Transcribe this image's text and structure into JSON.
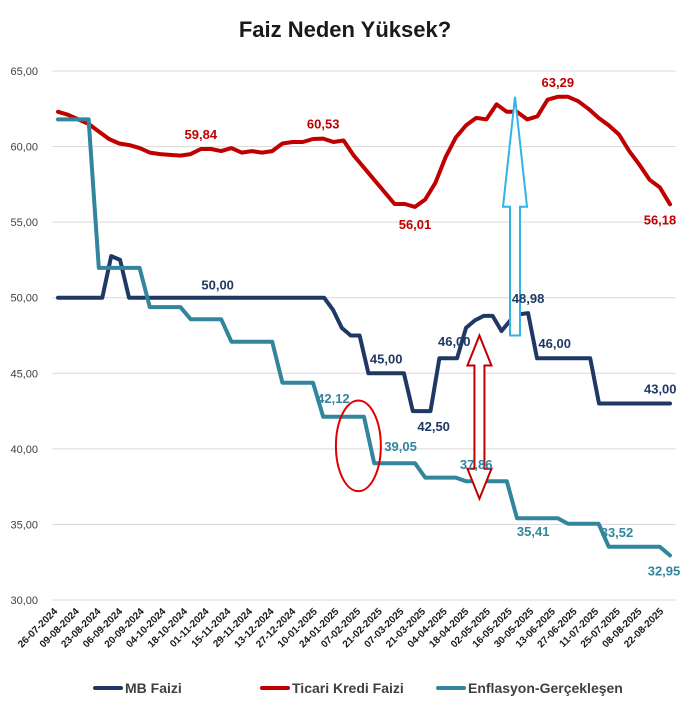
{
  "chart_data": {
    "type": "line",
    "title": "Faiz Neden Yüksek?",
    "ylim": [
      30,
      65
    ],
    "yticks": [
      "30,00",
      "35,00",
      "40,00",
      "45,00",
      "50,00",
      "55,00",
      "60,00",
      "65,00"
    ],
    "x_tick_labels": [
      "26-07-2024",
      "09-08-2024",
      "23-08-2024",
      "06-09-2024",
      "20-09-2024",
      "04-10-2024",
      "18-10-2024",
      "01-11-2024",
      "15-11-2024",
      "29-11-2024",
      "13-12-2024",
      "27-12-2024",
      "10-01-2025",
      "24-01-2025",
      "07-02-2025",
      "21-02-2025",
      "07-03-2025",
      "21-03-2025",
      "04-04-2025",
      "18-04-2025",
      "02-05-2025",
      "16-05-2025",
      "30-05-2025",
      "13-06-2025",
      "27-06-2025",
      "11-07-2025",
      "25-07-2025",
      "08-08-2025",
      "22-08-2025"
    ],
    "legend": [
      "MB Faizi",
      "Ticari Kredi Faizi",
      "Enflasyon-Gerçekleşen"
    ],
    "legend_position": "bottom",
    "colors": {
      "mb": "#1f3864",
      "ticari": "#c00000",
      "enflasyon": "#31859c",
      "circle": "#e00000",
      "red_arrow": "#c00000",
      "blue_arrow": "#31b4e6"
    },
    "series": [
      {
        "name": "MB Faizi",
        "values": [
          50,
          50,
          50,
          50,
          50,
          50,
          52.75,
          52.5,
          50,
          50,
          50,
          50,
          50,
          50,
          50,
          50,
          50,
          50,
          50,
          50,
          50,
          50,
          50,
          50,
          50,
          50,
          50,
          50,
          50,
          50,
          50,
          49.2,
          48,
          47.5,
          47.5,
          45,
          45,
          45,
          45,
          45,
          42.5,
          42.5,
          42.5,
          46,
          46,
          46,
          48,
          48.5,
          48.8,
          48.8,
          47.8,
          48.5,
          48.9,
          48.98,
          46,
          46,
          46,
          46,
          46,
          46,
          46,
          43,
          43,
          43,
          43,
          43,
          43,
          43,
          43,
          43
        ],
        "labels": [
          {
            "i": 18,
            "text": "50,00"
          },
          {
            "i": 37,
            "text": "45,00"
          },
          {
            "i": 41,
            "text": "42,50"
          },
          {
            "i": 44,
            "text": "46,00"
          },
          {
            "i": 53,
            "text": "48,98"
          },
          {
            "i": 56,
            "text": "46,00"
          },
          {
            "i": 67,
            "text": "43,00"
          }
        ]
      },
      {
        "name": "Ticari Kredi Faizi",
        "values": [
          62.3,
          62.1,
          61.8,
          61.5,
          61,
          60.5,
          60.2,
          60.1,
          59.9,
          59.6,
          59.5,
          59.45,
          59.4,
          59.5,
          59.84,
          59.84,
          59.7,
          59.9,
          59.6,
          59.7,
          59.6,
          59.7,
          60.2,
          60.3,
          60.3,
          60.5,
          60.53,
          60.3,
          60.4,
          59.4,
          58.6,
          57.8,
          57,
          56.2,
          56.2,
          56.01,
          56.5,
          57.6,
          59.3,
          60.6,
          61.4,
          61.9,
          61.8,
          62.8,
          62.3,
          62.3,
          61.8,
          62,
          63.1,
          63.29,
          63.29,
          63,
          62.5,
          61.9,
          61.4,
          60.8,
          59.7,
          58.8,
          57.8,
          57.3,
          56.18
        ],
        "labels": [
          {
            "i": 14,
            "text": "59,84"
          },
          {
            "i": 26,
            "text": "60,53"
          },
          {
            "i": 35,
            "text": "56,01"
          },
          {
            "i": 49,
            "text": "63,29"
          },
          {
            "i": 60,
            "text": "56,18"
          }
        ]
      },
      {
        "name": "Enflasyon-Gerçekleşen",
        "values": [
          61.8,
          61.8,
          61.8,
          61.8,
          51.97,
          51.97,
          51.97,
          51.97,
          51.97,
          49.38,
          49.38,
          49.38,
          49.38,
          48.58,
          48.58,
          48.58,
          48.58,
          47.09,
          47.09,
          47.09,
          47.09,
          47.09,
          44.38,
          44.38,
          44.38,
          44.38,
          42.12,
          42.12,
          42.12,
          42.12,
          42.12,
          39.05,
          39.05,
          39.05,
          39.05,
          39.05,
          38.1,
          38.1,
          38.1,
          38.1,
          37.86,
          37.86,
          37.86,
          37.86,
          37.86,
          35.41,
          35.41,
          35.41,
          35.41,
          35.41,
          35.05,
          35.05,
          35.05,
          35.05,
          33.52,
          33.52,
          33.52,
          33.52,
          33.52,
          33.52,
          32.95
        ],
        "labels": [
          {
            "i": 27,
            "text": "42,12"
          },
          {
            "i": 33,
            "text": "39,05"
          },
          {
            "i": 41,
            "text": "37,86"
          },
          {
            "i": 46,
            "text": "35,41"
          },
          {
            "i": 55,
            "text": "33,52"
          },
          {
            "i": 60,
            "text": "32,95"
          }
        ]
      }
    ],
    "annotations": {
      "circle": {
        "x_frac": [
          0.455,
          0.527
        ],
        "y_range": [
          37.2,
          43.2
        ]
      },
      "red_arrow": {
        "x_frac": 0.685,
        "y_range": [
          36.7,
          47.5
        ]
      },
      "blue_arrow": {
        "x_frac": 0.742,
        "y_range": [
          47.5,
          63.3
        ]
      }
    }
  }
}
